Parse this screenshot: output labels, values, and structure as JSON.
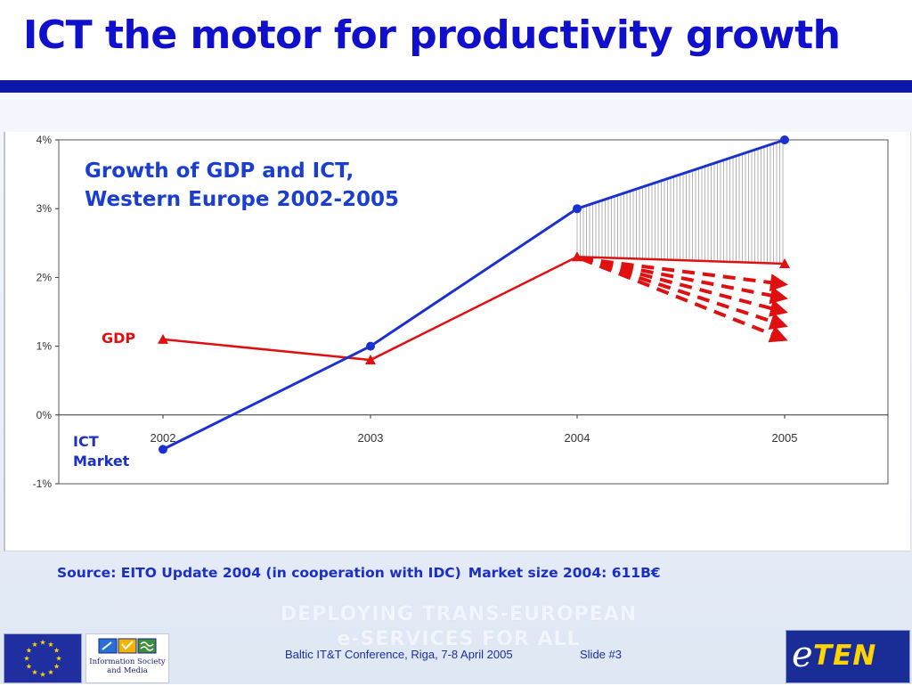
{
  "slide": {
    "title": "ICT the motor for productivity growth",
    "source": "Source: EITO Update 2004 (in cooperation with IDC)",
    "market_size": "Market size 2004: 611B€",
    "watermark_line1": "DEPLOYING TRANS-EUROPEAN",
    "watermark_line2": "e-SERVICES FOR ALL",
    "footer_conference": "Baltic IT&T Conference, Riga, 7-8 April 2005",
    "footer_slide": "Slide #3",
    "logo_infosoc_line1": "Information Society",
    "logo_infosoc_line2": "and Media",
    "logo_eten_e": "e",
    "logo_eten_text": "TEN"
  },
  "colors": {
    "title": "#1010cc",
    "ict_series": "#1a30d0",
    "gdp_series": "#e01010",
    "rule": "#0b18a8"
  },
  "chart_data": {
    "type": "line",
    "title_line1": "Growth of GDP and ICT,",
    "title_line2": "Western Europe 2002-2005",
    "categories": [
      "2002",
      "2003",
      "2004",
      "2005"
    ],
    "y_ticks": [
      "4%",
      "3%",
      "2%",
      "1%",
      "0%",
      "-1%"
    ],
    "ylim": [
      -1,
      4
    ],
    "unit": "%",
    "series": [
      {
        "name": "ICT",
        "label_line1": "ICT",
        "label_line2": "Market",
        "marker": "circle",
        "values": [
          -0.5,
          1.0,
          3.0,
          4.0
        ]
      },
      {
        "name": "GDP",
        "label_line1": "GDP",
        "marker": "triangle",
        "values": [
          1.1,
          0.8,
          2.3,
          2.2
        ]
      }
    ],
    "gap_hatch_between": [
      "2004",
      "2005"
    ],
    "downward_projections_2005": [
      1.9,
      1.7,
      1.5,
      1.3,
      1.1
    ],
    "grid": false,
    "legend": "inline labels"
  }
}
